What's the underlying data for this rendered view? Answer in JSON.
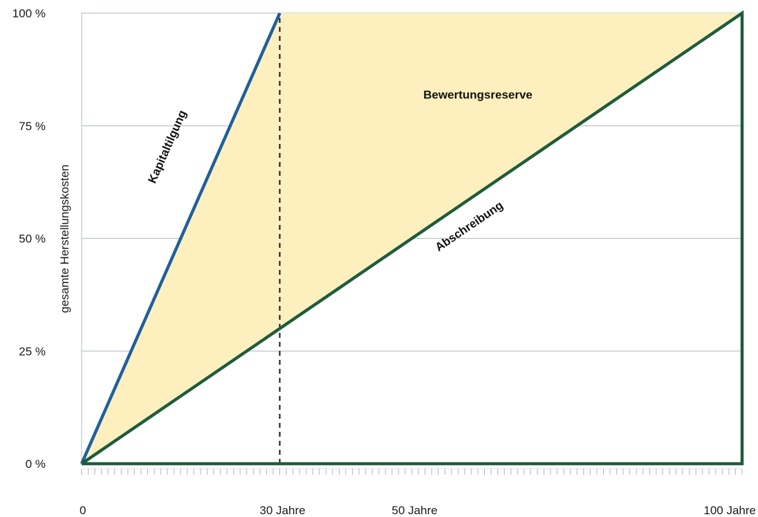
{
  "chart_data": {
    "type": "line",
    "title": "",
    "xlabel": "",
    "ylabel": "gesamte Herstellungskosten",
    "xlim": [
      0,
      100
    ],
    "ylim": [
      0,
      100
    ],
    "grid": true,
    "x_ticks": [
      {
        "value": 0,
        "label": "0"
      },
      {
        "value": 30,
        "label": "30 Jahre"
      },
      {
        "value": 50,
        "label": "50 Jahre"
      },
      {
        "value": 100,
        "label": "100 Jahre"
      }
    ],
    "y_ticks": [
      {
        "value": 0,
        "label": "0 %"
      },
      {
        "value": 25,
        "label": "25 %"
      },
      {
        "value": 50,
        "label": "50 %"
      },
      {
        "value": 75,
        "label": "75 %"
      },
      {
        "value": 100,
        "label": "100 %"
      }
    ],
    "series": [
      {
        "key": "kapitaltilgung",
        "x": [
          0,
          30
        ],
        "y": [
          0,
          100
        ],
        "color": "#1f5f9e"
      },
      {
        "key": "abschreibung",
        "x": [
          0,
          100,
          100,
          0
        ],
        "y": [
          0,
          100,
          0,
          0
        ],
        "color": "#1f5c3b"
      }
    ],
    "region": {
      "x": [
        0,
        30,
        100
      ],
      "y": [
        0,
        100,
        100
      ],
      "color": "#fdf0be"
    },
    "vline": {
      "x": 30,
      "y": [
        0,
        100
      ],
      "style": "dashed",
      "color": "#111111"
    },
    "annotations": [
      {
        "key": "kapitaltilgung",
        "text": "Kapitaltilgung",
        "x": 13.5,
        "y": 70
      },
      {
        "key": "abschreibung",
        "text": "Abschreibung",
        "x": 59,
        "y": 52
      },
      {
        "key": "bewertungsreserve",
        "text": "Bewertungsreserve",
        "x": 60,
        "y": 81
      }
    ]
  }
}
